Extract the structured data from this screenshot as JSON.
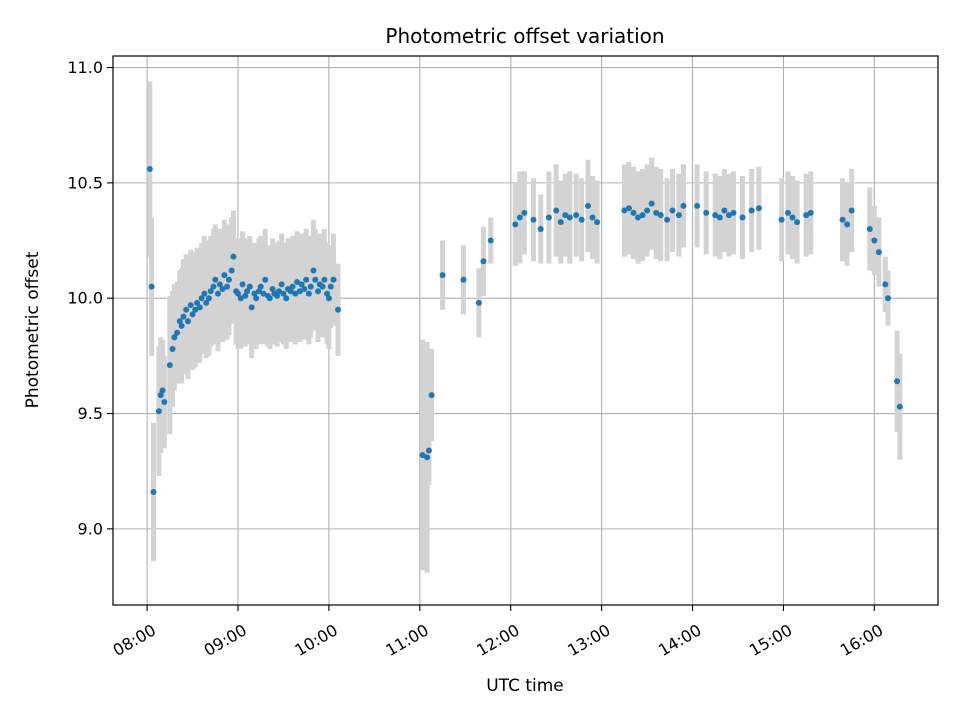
{
  "chart_data": {
    "type": "scatter",
    "title": "Photometric offset variation",
    "xlabel": "UTC time",
    "ylabel": "Photometric offset",
    "xlim": [
      7.625,
      16.7
    ],
    "ylim": [
      8.67,
      11.05
    ],
    "xticks": [
      {
        "value": 8,
        "label": "08:00"
      },
      {
        "value": 9,
        "label": "09:00"
      },
      {
        "value": 10,
        "label": "10:00"
      },
      {
        "value": 11,
        "label": "11:00"
      },
      {
        "value": 12,
        "label": "12:00"
      },
      {
        "value": 13,
        "label": "13:00"
      },
      {
        "value": 14,
        "label": "14:00"
      },
      {
        "value": 15,
        "label": "15:00"
      },
      {
        "value": 16,
        "label": "16:00"
      }
    ],
    "yticks": [
      {
        "value": 9.0,
        "label": "9.0"
      },
      {
        "value": 9.5,
        "label": "9.5"
      },
      {
        "value": 10.0,
        "label": "10.0"
      },
      {
        "value": 10.5,
        "label": "10.5"
      },
      {
        "value": 11.0,
        "label": "11.0"
      }
    ],
    "grid": true,
    "colors": {
      "marker": "#1f77b4",
      "errorbar": "#d3d3d3",
      "grid": "#b0b0b0"
    },
    "series": [
      {
        "name": "offset",
        "x": [
          8.03,
          8.05,
          8.07,
          8.13,
          8.15,
          8.17,
          8.19,
          8.25,
          8.28,
          8.3,
          8.33,
          8.36,
          8.38,
          8.4,
          8.43,
          8.45,
          8.48,
          8.5,
          8.53,
          8.55,
          8.58,
          8.6,
          8.63,
          8.65,
          8.68,
          8.7,
          8.73,
          8.75,
          8.78,
          8.8,
          8.83,
          8.85,
          8.88,
          8.9,
          8.93,
          8.95,
          8.98,
          9.0,
          9.03,
          9.05,
          9.08,
          9.1,
          9.13,
          9.15,
          9.18,
          9.2,
          9.23,
          9.25,
          9.28,
          9.3,
          9.33,
          9.35,
          9.38,
          9.4,
          9.43,
          9.45,
          9.48,
          9.5,
          9.53,
          9.55,
          9.58,
          9.6,
          9.63,
          9.65,
          9.68,
          9.7,
          9.73,
          9.75,
          9.78,
          9.8,
          9.83,
          9.85,
          9.88,
          9.9,
          9.93,
          9.95,
          9.98,
          10.0,
          10.02,
          10.05,
          10.1,
          11.03,
          11.08,
          11.1,
          11.13,
          11.25,
          11.48,
          11.65,
          11.7,
          11.78,
          12.05,
          12.1,
          12.15,
          12.25,
          12.33,
          12.42,
          12.5,
          12.55,
          12.6,
          12.65,
          12.72,
          12.78,
          12.85,
          12.9,
          12.95,
          13.25,
          13.3,
          13.35,
          13.4,
          13.45,
          13.5,
          13.55,
          13.6,
          13.65,
          13.72,
          13.78,
          13.85,
          13.9,
          14.05,
          14.15,
          14.25,
          14.3,
          14.35,
          14.4,
          14.45,
          14.55,
          14.65,
          14.73,
          14.98,
          15.05,
          15.1,
          15.15,
          15.25,
          15.3,
          15.65,
          15.7,
          15.75,
          15.95,
          16.0,
          16.05,
          16.12,
          16.15,
          16.25,
          16.28
        ],
        "y": [
          10.56,
          10.05,
          9.16,
          9.51,
          9.58,
          9.6,
          9.55,
          9.71,
          9.78,
          9.83,
          9.85,
          9.9,
          9.88,
          9.92,
          9.95,
          9.9,
          9.97,
          9.93,
          9.95,
          9.98,
          9.96,
          10.0,
          10.02,
          9.98,
          10.0,
          10.03,
          10.05,
          10.08,
          10.02,
          10.06,
          10.04,
          10.1,
          10.05,
          10.08,
          10.12,
          10.18,
          10.03,
          10.02,
          10.0,
          10.06,
          10.01,
          10.03,
          10.05,
          9.96,
          10.02,
          10.0,
          10.03,
          10.05,
          10.02,
          10.08,
          10.01,
          10.0,
          10.04,
          10.02,
          10.01,
          10.03,
          10.06,
          10.02,
          10.0,
          10.04,
          10.03,
          10.05,
          10.02,
          10.07,
          10.03,
          10.06,
          10.04,
          10.08,
          10.02,
          10.05,
          10.12,
          10.08,
          10.03,
          10.06,
          10.05,
          10.08,
          10.02,
          10.0,
          10.05,
          10.08,
          9.95,
          9.32,
          9.31,
          9.34,
          9.58,
          10.1,
          10.08,
          9.98,
          10.16,
          10.25,
          10.32,
          10.35,
          10.37,
          10.34,
          10.3,
          10.35,
          10.38,
          10.33,
          10.36,
          10.35,
          10.36,
          10.34,
          10.4,
          10.35,
          10.33,
          10.38,
          10.39,
          10.37,
          10.35,
          10.36,
          10.38,
          10.41,
          10.37,
          10.36,
          10.34,
          10.38,
          10.36,
          10.4,
          10.4,
          10.37,
          10.36,
          10.35,
          10.38,
          10.36,
          10.37,
          10.35,
          10.38,
          10.39,
          10.34,
          10.37,
          10.35,
          10.33,
          10.36,
          10.37,
          10.34,
          10.32,
          10.38,
          10.3,
          10.25,
          10.2,
          10.06,
          10.0,
          9.64,
          9.53
        ],
        "err": [
          0.38,
          0.3,
          0.3,
          0.28,
          0.25,
          0.22,
          0.2,
          0.3,
          0.25,
          0.23,
          0.22,
          0.22,
          0.25,
          0.25,
          0.24,
          0.25,
          0.24,
          0.24,
          0.25,
          0.24,
          0.24,
          0.24,
          0.25,
          0.24,
          0.25,
          0.24,
          0.25,
          0.24,
          0.25,
          0.24,
          0.23,
          0.24,
          0.23,
          0.24,
          0.23,
          0.2,
          0.23,
          0.24,
          0.22,
          0.23,
          0.22,
          0.23,
          0.22,
          0.22,
          0.22,
          0.22,
          0.23,
          0.22,
          0.22,
          0.22,
          0.22,
          0.22,
          0.22,
          0.22,
          0.22,
          0.22,
          0.22,
          0.22,
          0.22,
          0.22,
          0.22,
          0.22,
          0.22,
          0.22,
          0.22,
          0.22,
          0.22,
          0.22,
          0.22,
          0.22,
          0.22,
          0.22,
          0.22,
          0.22,
          0.22,
          0.22,
          0.22,
          0.22,
          0.18,
          0.2,
          0.2,
          0.5,
          0.5,
          0.15,
          0.2,
          0.15,
          0.15,
          0.15,
          0.15,
          0.1,
          0.18,
          0.2,
          0.18,
          0.18,
          0.15,
          0.2,
          0.2,
          0.18,
          0.18,
          0.2,
          0.18,
          0.18,
          0.2,
          0.18,
          0.18,
          0.2,
          0.2,
          0.2,
          0.2,
          0.2,
          0.2,
          0.2,
          0.2,
          0.2,
          0.18,
          0.18,
          0.18,
          0.18,
          0.18,
          0.18,
          0.18,
          0.18,
          0.18,
          0.18,
          0.18,
          0.18,
          0.18,
          0.18,
          0.18,
          0.18,
          0.18,
          0.18,
          0.18,
          0.18,
          0.18,
          0.18,
          0.18,
          0.18,
          0.15,
          0.15,
          0.12,
          0.12,
          0.22,
          0.23
        ]
      }
    ]
  }
}
